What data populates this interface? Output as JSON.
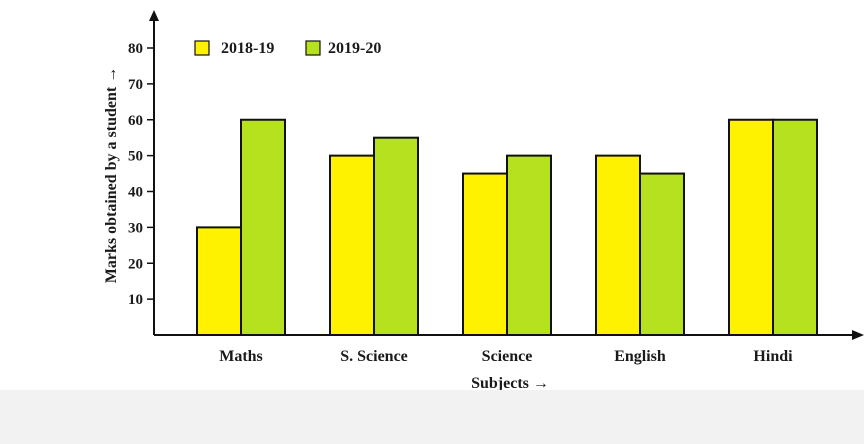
{
  "chart_data": {
    "type": "bar",
    "title": "",
    "xlabel": "Subjects →",
    "ylabel": "Marks obtained by a student →",
    "categories": [
      "Maths",
      "S. Science",
      "Science",
      "English",
      "Hindi"
    ],
    "series": [
      {
        "name": "2018-19",
        "values": [
          30,
          50,
          45,
          50,
          60
        ],
        "color": "#fff200"
      },
      {
        "name": "2019-20",
        "values": [
          60,
          55,
          50,
          45,
          60
        ],
        "color": "#b5e11f"
      }
    ],
    "yticks": [
      "10",
      "20",
      "30",
      "40",
      "50",
      "60",
      "70",
      "80"
    ],
    "ylim": [
      0,
      80
    ],
    "grid": false,
    "legend_position": "top-left"
  }
}
